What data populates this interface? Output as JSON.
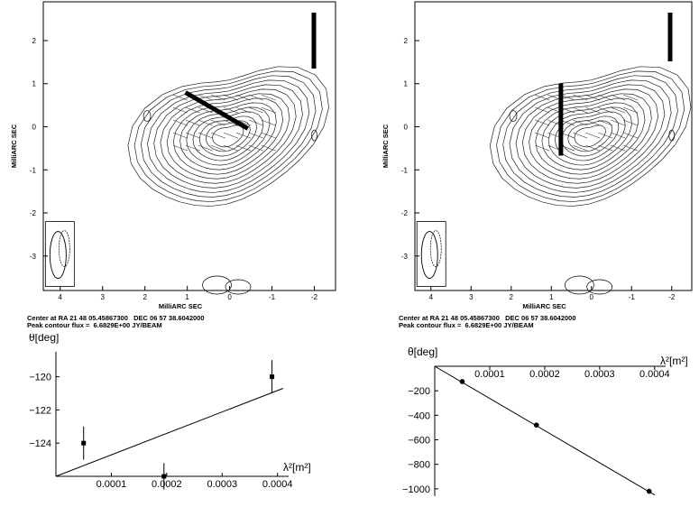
{
  "maps": [
    {
      "ylabel": "MilliARC SEC",
      "xlabel": "MilliARC SEC",
      "xticks": [
        "4",
        "3",
        "2",
        "1",
        "0",
        "-1",
        "-2"
      ],
      "yticks": [
        "2",
        "1",
        "0",
        "-1",
        "-2",
        "-3"
      ],
      "caption_line1": "Center at RA 21 48 05.45867300   DEC 06 57 38.6042000",
      "caption_line2": "Peak contour flux =  6.6829E+00 JY/BEAM",
      "vector_angle_deg": -120
    },
    {
      "ylabel": "MilliARC SEC",
      "xlabel": "MilliARC SEC",
      "xticks": [
        "4",
        "3",
        "2",
        "1",
        "0",
        "-1",
        "-2"
      ],
      "yticks": [
        "2",
        "1",
        "0",
        "-1",
        "-2",
        "-3"
      ],
      "caption_line1": "Center at RA 21 48 05.45867300   DEC 06 57 38.6042000",
      "caption_line2": "Peak contour flux =  6.6829E+00 JY/BEAM",
      "vector_angle_deg": 0
    }
  ],
  "chart_data": [
    {
      "type": "scatter",
      "ylabel": "θ[deg]",
      "xlabel": "λ²[m²]",
      "xticks": [
        "0.0001",
        "0.0002",
        "0.0003",
        "0.0004"
      ],
      "yticks": [
        "-120",
        "-122",
        "-124"
      ],
      "xlim": [
        0,
        0.00042
      ],
      "ylim": [
        -126,
        -118.5
      ],
      "points": [
        {
          "x": 5e-05,
          "y": -124,
          "err": 1.0
        },
        {
          "x": 0.000195,
          "y": -126,
          "err": 0.8
        },
        {
          "x": 0.00039,
          "y": -120,
          "err": 1.0
        }
      ],
      "fit": {
        "x": [
          0,
          0.00041
        ],
        "y": [
          -126,
          -120.7
        ]
      }
    },
    {
      "type": "scatter",
      "ylabel": "θ[deg]",
      "xlabel": "λ²[m²]",
      "xticks": [
        "0.0001",
        "0.0002",
        "0.0003",
        "0.0004"
      ],
      "yticks": [
        "-200",
        "-400",
        "-600",
        "-800",
        "-1000"
      ],
      "xlim": [
        0,
        0.00042
      ],
      "ylim": [
        -1060,
        0
      ],
      "points": [
        {
          "x": 5e-05,
          "y": -125
        },
        {
          "x": 0.000185,
          "y": -480
        },
        {
          "x": 0.00039,
          "y": -1020
        }
      ],
      "fit": {
        "x": [
          0,
          0.0004
        ],
        "y": [
          0,
          -1050
        ]
      }
    }
  ]
}
